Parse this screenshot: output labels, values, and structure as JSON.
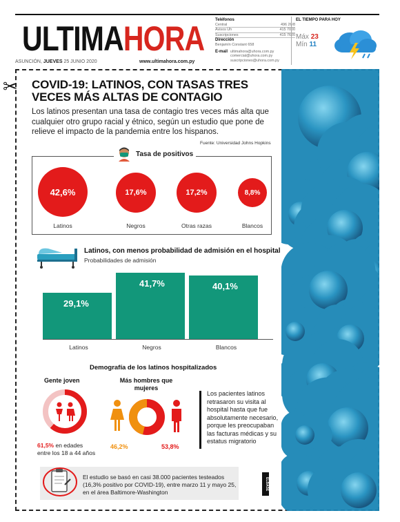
{
  "masthead": {
    "brand_a": "ULTIMA",
    "brand_b": "HORA",
    "city": "ASUNCIÓN,",
    "weekday": "JUEVES",
    "date": "25 JUNIO 2020",
    "website": "www.ultimahora.com.py"
  },
  "contacts": {
    "phones_label": "Teléfonos",
    "phones": [
      {
        "label": "Central",
        "value": "496 26/8"
      },
      {
        "label": "Avisos Uh",
        "value": "415 7000"
      },
      {
        "label": "Suscripciones",
        "value": "415 7620"
      }
    ],
    "address_label": "Dirección",
    "address": "Benjamín Constant 658",
    "email_label": "E-mail",
    "emails": [
      "ultimahora@uhora.com.py",
      "comercial@uhora.com.py",
      "suscripciones@uhora.com.py"
    ]
  },
  "weather": {
    "title": "EL TIEMPO PARA HOY",
    "max_label": "Máx",
    "max_value": "23",
    "min_label": "Mín",
    "min_value": "11",
    "icon": "storm-cloud-icon"
  },
  "article": {
    "headline": "COVID-19: LATINOS, CON TASAS TRES VECES MÁS ALTAS DE CONTAGIO",
    "lede": "Los latinos presentan una tasa de contagio tres veces más alta que cualquier otro grupo racial y étnico, según un estudio que pone de relieve el impacto de la pandemia entre los hispanos.",
    "source": "Fuente: Universidad Johns Hopkins"
  },
  "positivity": {
    "title": "Tasa de positivos",
    "items": [
      {
        "label": "Latinos",
        "value": "42,6%",
        "fraction": 0.426
      },
      {
        "label": "Negros",
        "value": "17,6%",
        "fraction": 0.176
      },
      {
        "label": "Otras razas",
        "value": "17,2%",
        "fraction": 0.172
      },
      {
        "label": "Blancos",
        "value": "8,8%",
        "fraction": 0.088
      }
    ],
    "color": "#e31b1b"
  },
  "hospital": {
    "title": "Latinos, con menos probabilidad de admisión en el hospital",
    "subtitle": "Probabilidades de admisión",
    "bars": [
      {
        "label": "Latinos",
        "value": "29,1%",
        "fraction": 0.291
      },
      {
        "label": "Negros",
        "value": "41,7%",
        "fraction": 0.417
      },
      {
        "label": "Blancos",
        "value": "40,1%",
        "fraction": 0.401
      }
    ],
    "color": "#12977a"
  },
  "demography": {
    "title": "Demografía de los latinos hospitalizados",
    "young": {
      "title": "Gente joven",
      "percent": "61,5%",
      "fraction": 0.615,
      "caption_a": "en edades",
      "caption_b": "entre los 18 a 44 años"
    },
    "gender": {
      "title": "Más hombres que mujeres",
      "women": "46,2%",
      "men": "53,8%",
      "women_fraction": 0.462,
      "men_fraction": 0.538,
      "women_color": "#f0900f",
      "men_color": "#e31b1b"
    },
    "note": "Los pacientes latinos retrasaron su visita al hospital hasta que fue absolutamente necesario, porque les preocupaban las facturas médicas y su estatus migratorio"
  },
  "footer": {
    "text": "El estudio se basó en casi 38.000 pacientes testeados (16,3% positivo por COVID-19), entre marzo 11 y mayo 25, en el área Baltimore-Washington",
    "logo_text": "ELBASE"
  }
}
